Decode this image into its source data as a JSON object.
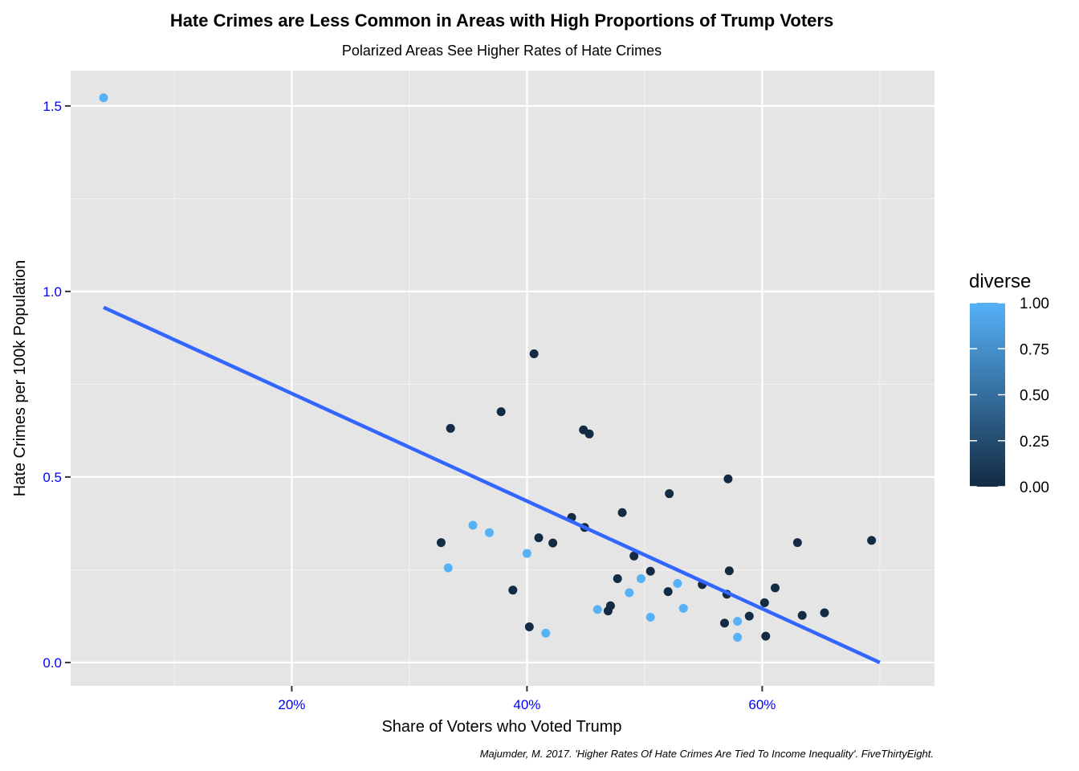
{
  "chart_data": {
    "type": "scatter",
    "title": "Hate Crimes are Less Common in Areas with High Proportions of Trump Voters",
    "subtitle": "Polarized Areas See Higher Rates of Hate Crimes",
    "xlabel": "Share of Voters who Voted Trump",
    "ylabel": "Hate Crimes per 100k Population",
    "caption": "Majumder, M. 2017. 'Higher Rates Of Hate Crimes Are Tied To Income Inequality'. FiveThirtyEight.",
    "xlim": [
      0.012,
      0.7465
    ],
    "ylim": [
      -0.063,
      1.595
    ],
    "x_ticks": [
      0.2,
      0.4,
      0.6
    ],
    "x_tick_labels": [
      "20%",
      "40%",
      "60%"
    ],
    "y_ticks": [
      0.0,
      0.5,
      1.0,
      1.5
    ],
    "y_tick_labels": [
      "0.0",
      "0.5",
      "1.0",
      "1.5"
    ],
    "tick_label_color": "#0000ff",
    "grid": true,
    "panel_background": "#e5e5e5",
    "legend": {
      "title": "diverse",
      "placement": "right",
      "ticks": [
        1.0,
        0.75,
        0.5,
        0.25,
        0.0
      ],
      "tick_labels": [
        "1.00",
        "0.75",
        "0.50",
        "0.25",
        "0.00"
      ],
      "low_color": "#132b43",
      "high_color": "#56b1f7"
    },
    "trend_line": {
      "color": "#3366ff",
      "points": [
        {
          "x": 0.04,
          "y": 0.957
        },
        {
          "x": 0.7,
          "y": 0.0
        }
      ]
    },
    "points": [
      {
        "x": 0.04,
        "y": 1.522,
        "diverse": 1
      },
      {
        "x": 0.327,
        "y": 0.323,
        "diverse": 0
      },
      {
        "x": 0.335,
        "y": 0.631,
        "diverse": 0
      },
      {
        "x": 0.333,
        "y": 0.255,
        "diverse": 1
      },
      {
        "x": 0.354,
        "y": 0.37,
        "diverse": 1
      },
      {
        "x": 0.368,
        "y": 0.35,
        "diverse": 1
      },
      {
        "x": 0.378,
        "y": 0.676,
        "diverse": 0
      },
      {
        "x": 0.388,
        "y": 0.195,
        "diverse": 0
      },
      {
        "x": 0.4,
        "y": 0.294,
        "diverse": 1
      },
      {
        "x": 0.402,
        "y": 0.096,
        "diverse": 0
      },
      {
        "x": 0.406,
        "y": 0.832,
        "diverse": 0
      },
      {
        "x": 0.41,
        "y": 0.336,
        "diverse": 0
      },
      {
        "x": 0.416,
        "y": 0.079,
        "diverse": 1
      },
      {
        "x": 0.422,
        "y": 0.322,
        "diverse": 0
      },
      {
        "x": 0.438,
        "y": 0.391,
        "diverse": 0
      },
      {
        "x": 0.448,
        "y": 0.627,
        "diverse": 0
      },
      {
        "x": 0.449,
        "y": 0.364,
        "diverse": 0
      },
      {
        "x": 0.453,
        "y": 0.616,
        "diverse": 0
      },
      {
        "x": 0.46,
        "y": 0.143,
        "diverse": 1
      },
      {
        "x": 0.469,
        "y": 0.139,
        "diverse": 0
      },
      {
        "x": 0.471,
        "y": 0.153,
        "diverse": 0
      },
      {
        "x": 0.477,
        "y": 0.226,
        "diverse": 0
      },
      {
        "x": 0.481,
        "y": 0.404,
        "diverse": 0
      },
      {
        "x": 0.487,
        "y": 0.188,
        "diverse": 1
      },
      {
        "x": 0.491,
        "y": 0.287,
        "diverse": 0
      },
      {
        "x": 0.497,
        "y": 0.226,
        "diverse": 1
      },
      {
        "x": 0.505,
        "y": 0.246,
        "diverse": 0
      },
      {
        "x": 0.505,
        "y": 0.122,
        "diverse": 1
      },
      {
        "x": 0.52,
        "y": 0.191,
        "diverse": 0
      },
      {
        "x": 0.521,
        "y": 0.455,
        "diverse": 0
      },
      {
        "x": 0.528,
        "y": 0.213,
        "diverse": 1
      },
      {
        "x": 0.533,
        "y": 0.146,
        "diverse": 1
      },
      {
        "x": 0.549,
        "y": 0.21,
        "diverse": 0
      },
      {
        "x": 0.568,
        "y": 0.106,
        "diverse": 0
      },
      {
        "x": 0.57,
        "y": 0.184,
        "diverse": 0
      },
      {
        "x": 0.571,
        "y": 0.495,
        "diverse": 0
      },
      {
        "x": 0.572,
        "y": 0.247,
        "diverse": 0
      },
      {
        "x": 0.579,
        "y": 0.111,
        "diverse": 1
      },
      {
        "x": 0.579,
        "y": 0.068,
        "diverse": 1
      },
      {
        "x": 0.589,
        "y": 0.125,
        "diverse": 0
      },
      {
        "x": 0.602,
        "y": 0.161,
        "diverse": 0
      },
      {
        "x": 0.603,
        "y": 0.071,
        "diverse": 0
      },
      {
        "x": 0.611,
        "y": 0.201,
        "diverse": 0
      },
      {
        "x": 0.63,
        "y": 0.323,
        "diverse": 0
      },
      {
        "x": 0.634,
        "y": 0.127,
        "diverse": 0
      },
      {
        "x": 0.653,
        "y": 0.134,
        "diverse": 0
      },
      {
        "x": 0.693,
        "y": 0.329,
        "diverse": 0
      }
    ]
  }
}
